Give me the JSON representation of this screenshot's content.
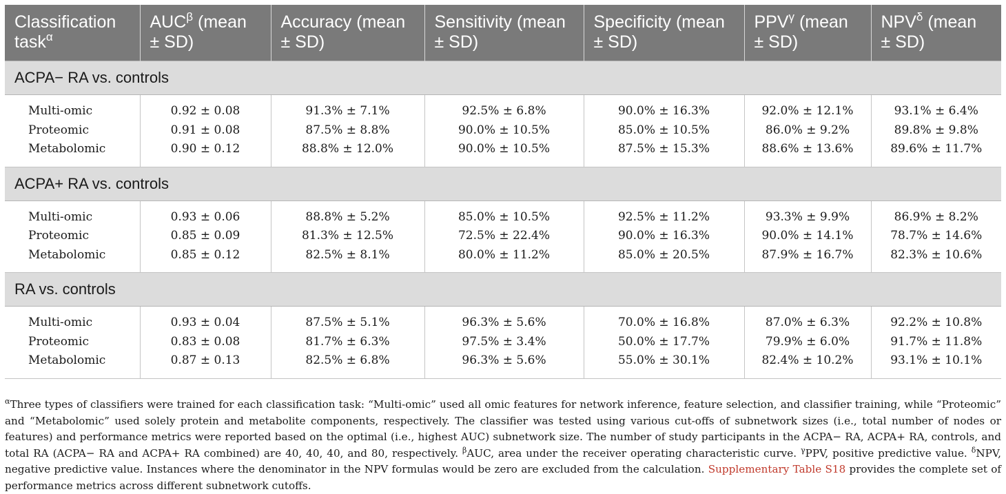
{
  "table": {
    "headers": [
      {
        "text": "Classification task",
        "sup": "α",
        "line2": "task"
      },
      {
        "text": "AUC",
        "sup": "β",
        "rest": " (mean ± SD)"
      },
      {
        "text": "Accuracy (mean ± SD)"
      },
      {
        "text": "Sensitivity (mean ± SD)"
      },
      {
        "text": "Specificity (mean ± SD)"
      },
      {
        "text": "PPV",
        "sup": "γ",
        "rest": " (mean ± SD)"
      },
      {
        "text": "NPV",
        "sup": "δ",
        "rest": " (mean ± SD)"
      }
    ],
    "header_lines": {
      "h1a": "Classification",
      "h1b": "task",
      "h1sup": "α",
      "h2a": "AUC",
      "h2sup": "β",
      "h2b": " (mean",
      "h2c": "± SD)",
      "h3a": "Accuracy (mean",
      "h3b": "± SD)",
      "h4a": "Sensitivity (mean",
      "h4b": "± SD)",
      "h5a": "Specificity (mean",
      "h5b": "± SD)",
      "h6a": "PPV",
      "h6sup": "γ",
      "h6b": " (mean",
      "h6c": "± SD)",
      "h7a": "NPV",
      "h7sup": "δ",
      "h7b": " (mean",
      "h7c": "± SD)"
    },
    "groups": [
      {
        "title": "ACPA− RA vs. controls",
        "rows": [
          {
            "task": "Multi-omic",
            "auc": "0.92 ± 0.08",
            "accuracy": "91.3% ± 7.1%",
            "sensitivity": "92.5% ± 6.8%",
            "specificity": "90.0% ± 16.3%",
            "ppv": "92.0% ± 12.1%",
            "npv": "93.1% ± 6.4%"
          },
          {
            "task": "Proteomic",
            "auc": "0.91 ± 0.08",
            "accuracy": "87.5% ± 8.8%",
            "sensitivity": "90.0% ± 10.5%",
            "specificity": "85.0% ± 10.5%",
            "ppv": "86.0% ± 9.2%",
            "npv": "89.8% ± 9.8%"
          },
          {
            "task": "Metabolomic",
            "auc": "0.90 ± 0.12",
            "accuracy": "88.8% ± 12.0%",
            "sensitivity": "90.0% ± 10.5%",
            "specificity": "87.5% ± 15.3%",
            "ppv": "88.6% ± 13.6%",
            "npv": "89.6% ± 11.7%"
          }
        ]
      },
      {
        "title": "ACPA+ RA vs. controls",
        "rows": [
          {
            "task": "Multi-omic",
            "auc": "0.93 ± 0.06",
            "accuracy": "88.8% ± 5.2%",
            "sensitivity": "85.0% ± 10.5%",
            "specificity": "92.5% ± 11.2%",
            "ppv": "93.3% ± 9.9%",
            "npv": "86.9% ± 8.2%"
          },
          {
            "task": "Proteomic",
            "auc": "0.85 ± 0.09",
            "accuracy": "81.3% ± 12.5%",
            "sensitivity": "72.5% ± 22.4%",
            "specificity": "90.0% ± 16.3%",
            "ppv": "90.0% ± 14.1%",
            "npv": "78.7% ± 14.6%"
          },
          {
            "task": "Metabolomic",
            "auc": "0.85 ± 0.12",
            "accuracy": "82.5% ± 8.1%",
            "sensitivity": "80.0% ± 11.2%",
            "specificity": "85.0% ± 20.5%",
            "ppv": "87.9% ± 16.7%",
            "npv": "82.3% ± 10.6%"
          }
        ]
      },
      {
        "title": "RA vs. controls",
        "rows": [
          {
            "task": "Multi-omic",
            "auc": "0.93 ± 0.04",
            "accuracy": "87.5% ± 5.1%",
            "sensitivity": "96.3% ± 5.6%",
            "specificity": "70.0% ± 16.8%",
            "ppv": "87.0% ± 6.3%",
            "npv": "92.2% ± 10.8%"
          },
          {
            "task": "Proteomic",
            "auc": "0.83 ± 0.08",
            "accuracy": "81.7% ± 6.3%",
            "sensitivity": "97.5% ± 3.4%",
            "specificity": "50.0% ± 17.7%",
            "ppv": "79.9% ± 6.0%",
            "npv": "91.7% ± 11.8%"
          },
          {
            "task": "Metabolomic",
            "auc": "0.87 ± 0.13",
            "accuracy": "82.5% ± 6.8%",
            "sensitivity": "96.3% ± 5.6%",
            "specificity": "55.0% ± 30.1%",
            "ppv": "82.4% ± 10.2%",
            "npv": "93.1% ± 10.1%"
          }
        ]
      }
    ]
  },
  "footnote": {
    "alpha_mark": "α",
    "alpha_text": "Three types of classifiers were trained for each classification task: “Multi-omic” used all omic features for network inference, feature selection, and classifier training, while “Proteomic” and “Metabolomic” used solely protein and metabolite components, respectively. The classifier was tested using various cut-offs of subnetwork sizes (i.e., total number of nodes or features) and performance metrics were reported based on the optimal (i.e., highest AUC) subnetwork size. The number of study participants in the ACPA− RA, ACPA+ RA, controls, and total RA (ACPA− RA and ACPA+ RA combined) are 40, 40, 40, and 80, respectively. ",
    "beta_mark": "β",
    "beta_text": "AUC, area under the receiver operating characteristic curve. ",
    "gamma_mark": "γ",
    "gamma_text": "PPV, positive predictive value. ",
    "delta_mark": "δ",
    "delta_text": "NPV, negative predictive value. Instances where the denominator in the NPV formulas would be zero are excluded from the calculation. ",
    "link_text": "Supplementary Table S18",
    "tail_text": " provides the complete set of performance metrics across different subnetwork cutoffs."
  },
  "colors": {
    "header_bg": "#7a7a7a",
    "group_bg": "#dcdcdc",
    "link": "#c0392b"
  }
}
